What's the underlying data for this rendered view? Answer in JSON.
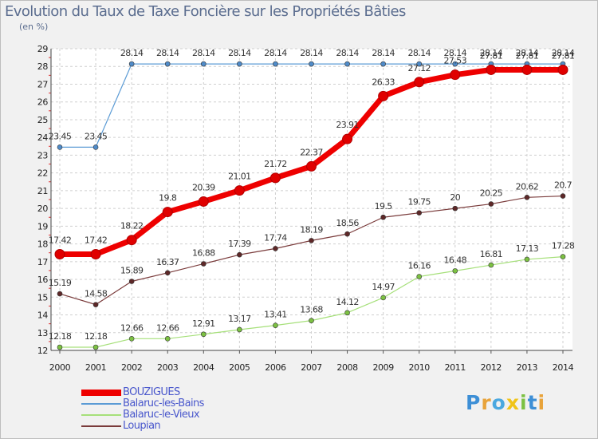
{
  "title": "Evolution du Taux de Taxe Foncière sur les Propriétés Bâties",
  "subtitle": "(en %)",
  "brand": {
    "letters": [
      "P",
      "r",
      "o",
      "x",
      "i",
      "t",
      "i"
    ],
    "colors": [
      "#3d8fd6",
      "#e8a33a",
      "#4aa8e0",
      "#f0c419",
      "#7cc142",
      "#3d8fd6",
      "#e8a33a"
    ]
  },
  "chart_data": {
    "type": "line",
    "title": "Evolution du Taux de Taxe Foncière sur les Propriétés Bâties",
    "ylabel": "(en %)",
    "xlabel": "",
    "categories": [
      "2000",
      "2001",
      "2002",
      "2003",
      "2004",
      "2005",
      "2006",
      "2007",
      "2008",
      "2009",
      "2010",
      "2011",
      "2012",
      "2013",
      "2014"
    ],
    "ylim": [
      12,
      29
    ],
    "yticks": [
      "12",
      "13",
      "14",
      "15",
      "16",
      "17",
      "18",
      "19",
      "20",
      "21",
      "22",
      "23",
      "24",
      "25",
      "26",
      "27",
      "28",
      "29"
    ],
    "grid": true,
    "legend_position": "bottom-left",
    "series": [
      {
        "name": "Balaruc-les-Bains",
        "color": "#5b9bd5",
        "point": "#4f8bc9",
        "width": 1.2,
        "radius": 3,
        "values": [
          23.45,
          23.45,
          28.14,
          28.14,
          28.14,
          28.14,
          28.14,
          28.14,
          28.14,
          28.14,
          28.14,
          28.14,
          28.14,
          28.14,
          28.14
        ],
        "labels": [
          "23.45",
          "23.45",
          "28.14",
          "28.14",
          "28.14",
          "28.14",
          "28.14",
          "28.14",
          "28.14",
          "28.14",
          "28.14",
          "28.14",
          "28.14",
          "28.14",
          "28.14"
        ]
      },
      {
        "name": "Balaruc-le-Vieux",
        "color": "#a6e07a",
        "point": "#7cc142",
        "width": 1.2,
        "radius": 3,
        "values": [
          12.18,
          12.18,
          12.66,
          12.66,
          12.91,
          13.17,
          13.41,
          13.68,
          14.12,
          14.97,
          16.16,
          16.48,
          16.81,
          17.13,
          17.28
        ],
        "labels": [
          "12.18",
          "12.18",
          "12.66",
          "12.66",
          "12.91",
          "13.17",
          "13.41",
          "13.68",
          "14.12",
          "14.97",
          "16.16",
          "16.48",
          "16.81",
          "17.13",
          "17.28"
        ]
      },
      {
        "name": "Loupian",
        "color": "#7a3b3b",
        "point": "#5e2828",
        "width": 1.2,
        "radius": 3,
        "values": [
          15.19,
          14.58,
          15.89,
          16.37,
          16.88,
          17.39,
          17.74,
          18.19,
          18.56,
          19.5,
          19.75,
          20,
          20.25,
          20.62,
          20.7
        ],
        "labels": [
          "15.19",
          "14.58",
          "15.89",
          "16.37",
          "16.88",
          "17.39",
          "17.74",
          "18.19",
          "18.56",
          "19.5",
          "19.75",
          "20",
          "20.25",
          "20.62",
          "20.7"
        ]
      },
      {
        "name": "BOUZIGUES",
        "color": "#ee0000",
        "point": "#e00000",
        "width": 7,
        "radius": 6,
        "values": [
          17.42,
          17.42,
          18.22,
          19.8,
          20.39,
          21.01,
          21.72,
          22.37,
          23.91,
          26.33,
          27.12,
          27.53,
          27.81,
          27.81,
          27.81
        ],
        "labels": [
          "17.42",
          "17.42",
          "18.22",
          "19.8",
          "20.39",
          "21.01",
          "21.72",
          "22.37",
          "23.91",
          "26.33",
          "27.12",
          "27.53",
          "27.81",
          "27.81",
          "27.81"
        ]
      }
    ],
    "legend": [
      "BOUZIGUES",
      "Balaruc-les-Bains",
      "Balaruc-le-Vieux",
      "Loupian"
    ]
  }
}
